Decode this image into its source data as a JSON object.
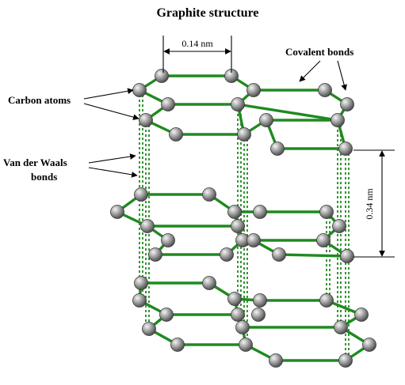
{
  "title": "Graphite structure",
  "labels": {
    "carbon_atoms": "Carbon atoms",
    "covalent_bonds": "Covalent bonds",
    "vdw_line1": "Van der Waals",
    "vdw_line2": "bonds"
  },
  "measurements": {
    "bond_length": "0.14 nm",
    "layer_spacing": "0.34 nm"
  },
  "colors": {
    "bond": "#1f8a1f",
    "atom": "#8f8f8f",
    "text": "#000000"
  }
}
